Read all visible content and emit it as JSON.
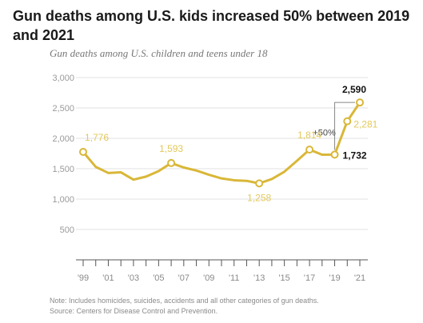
{
  "title": "Gun deaths among U.S. kids increased 50% between 2019 and 2021",
  "subtitle": "Gun deaths among U.S. children and teens under 18",
  "notes": [
    "Note: Includes homicides, suicides, accidents and all other categories of gun deaths.",
    "Source: Centers for Disease Control and Prevention."
  ],
  "colors": {
    "line": "#D9B738",
    "label": "#E3C85A",
    "grid": "#e2e2e2",
    "emphasis": "#111111"
  },
  "chart_data": {
    "type": "line",
    "title": "Gun deaths among U.S. kids increased 50% between 2019 and 2021",
    "subtitle": "Gun deaths among U.S. children and teens under 18",
    "xlabel": "",
    "ylabel": "",
    "xlim": [
      1999,
      2021
    ],
    "ylim": [
      0,
      3000
    ],
    "yticks": [
      500,
      1000,
      1500,
      2000,
      2500,
      3000
    ],
    "ytick_labels": [
      "500",
      "1,000",
      "1,500",
      "2,000",
      "2,500",
      "3,000"
    ],
    "xtick_labels": [
      {
        "x": 1999,
        "label": "'99"
      },
      {
        "x": 2001,
        "label": "'01"
      },
      {
        "x": 2003,
        "label": "'03"
      },
      {
        "x": 2005,
        "label": "'05"
      },
      {
        "x": 2007,
        "label": "'07"
      },
      {
        "x": 2009,
        "label": "'09"
      },
      {
        "x": 2011,
        "label": "'11"
      },
      {
        "x": 2013,
        "label": "'13"
      },
      {
        "x": 2015,
        "label": "'15"
      },
      {
        "x": 2017,
        "label": "'17"
      },
      {
        "x": 2019,
        "label": "'19"
      },
      {
        "x": 2021,
        "label": "'21"
      }
    ],
    "grid": true,
    "series": [
      {
        "x": [
          1999,
          2000,
          2001,
          2002,
          2003,
          2004,
          2005,
          2006,
          2007,
          2008,
          2009,
          2010,
          2011,
          2012,
          2013,
          2014,
          2015,
          2016,
          2017,
          2018,
          2019,
          2020,
          2021
        ],
        "y": [
          1776,
          1530,
          1430,
          1440,
          1320,
          1370,
          1460,
          1593,
          1520,
          1470,
          1400,
          1340,
          1310,
          1300,
          1258,
          1330,
          1450,
          1630,
          1814,
          1730,
          1732,
          2281,
          2590
        ]
      }
    ],
    "annotations": [
      {
        "x": 1999,
        "y": 1776,
        "text": "1,776",
        "style": "light"
      },
      {
        "x": 2006,
        "y": 1593,
        "text": "1,593",
        "style": "light"
      },
      {
        "x": 2013,
        "y": 1258,
        "text": "1,258",
        "style": "light"
      },
      {
        "x": 2017,
        "y": 1814,
        "text": "1,814",
        "style": "light"
      },
      {
        "x": 2019,
        "y": 1732,
        "text": "1,732",
        "style": "bold"
      },
      {
        "x": 2020,
        "y": 2281,
        "text": "2,281",
        "style": "light"
      },
      {
        "x": 2021,
        "y": 2590,
        "text": "2,590",
        "style": "bold"
      },
      {
        "x": 2019,
        "y": 2100,
        "text": "+50%",
        "style": "change"
      }
    ]
  }
}
